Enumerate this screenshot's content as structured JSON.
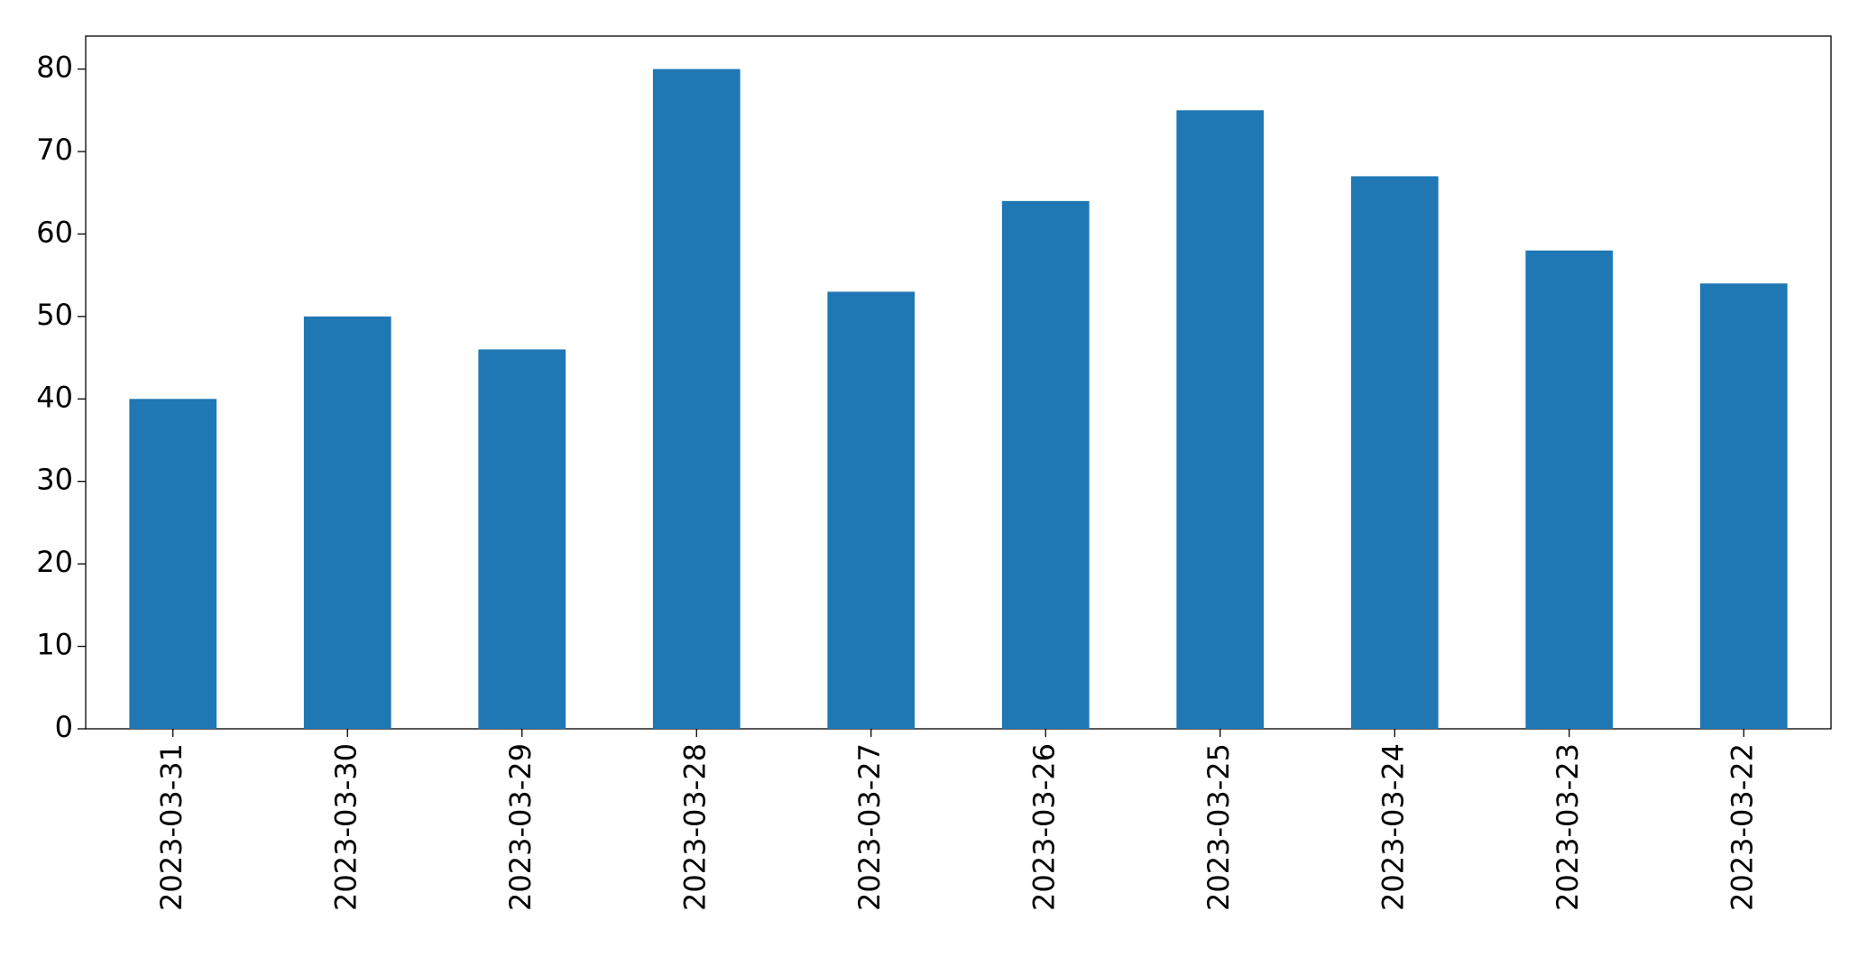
{
  "chart_data": {
    "type": "bar",
    "categories": [
      "2023-03-31",
      "2023-03-30",
      "2023-03-29",
      "2023-03-28",
      "2023-03-27",
      "2023-03-26",
      "2023-03-25",
      "2023-03-24",
      "2023-03-23",
      "2023-03-22"
    ],
    "values": [
      40,
      50,
      46,
      80,
      53,
      64,
      75,
      67,
      58,
      54
    ],
    "color": "#1f77b4",
    "ylim": [
      0,
      84
    ],
    "yticks": [
      0,
      10,
      20,
      30,
      40,
      50,
      60,
      70,
      80
    ],
    "grid": false
  }
}
